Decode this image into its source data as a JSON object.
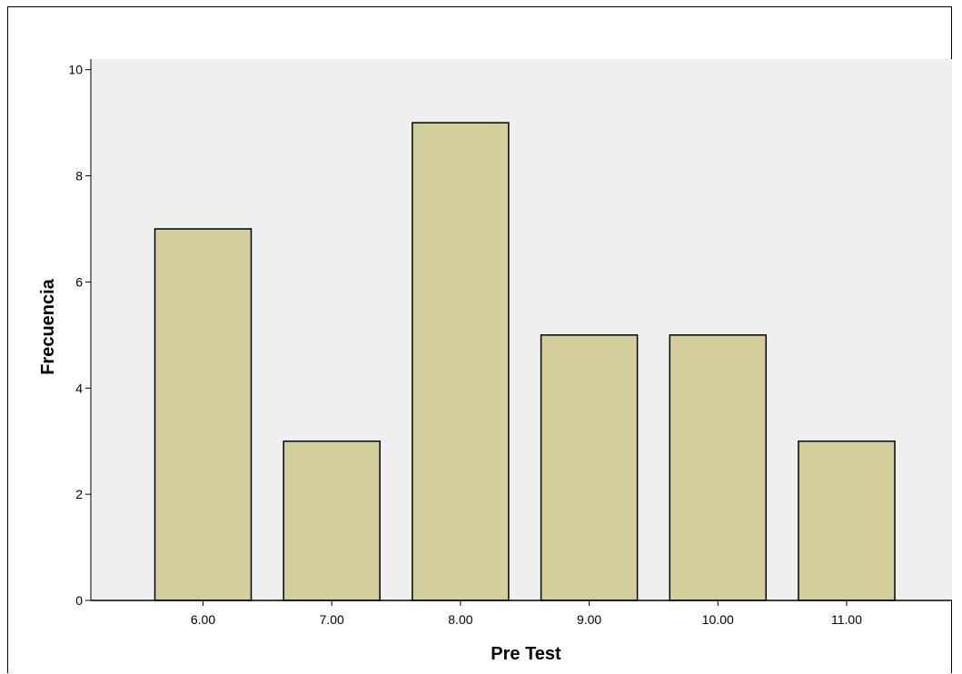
{
  "chart_data": {
    "type": "bar",
    "title": "",
    "xlabel": "Pre Test",
    "ylabel": "Frecuencia",
    "categories": [
      "6.00",
      "7.00",
      "8.00",
      "9.00",
      "10.00",
      "11.00"
    ],
    "values": [
      7,
      3,
      9,
      5,
      5,
      3
    ],
    "ylim": [
      0,
      10.2
    ],
    "yticks": [
      "0",
      "2",
      "4",
      "6",
      "8",
      "10"
    ],
    "grid": false,
    "legend": "none",
    "colors": {
      "bar_fill": "#d3cf9a",
      "bar_stroke": "#000000",
      "plot_background": "#efefef",
      "page_background": "#ffffff"
    }
  }
}
